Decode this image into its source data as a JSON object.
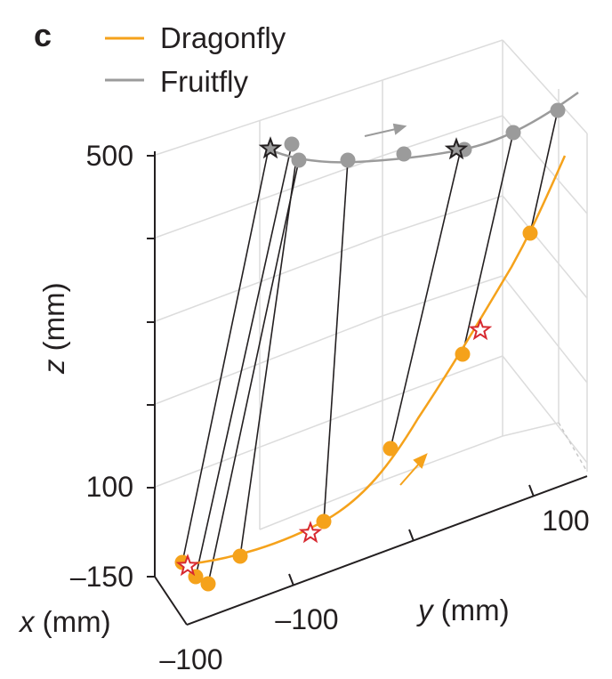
{
  "panel_label": "c",
  "colors": {
    "dragonfly": "#f5a21b",
    "fruitfly": "#9b9b9b",
    "star_outline": "#d7282f",
    "link": "#231f20",
    "grid": "#d9d9d9",
    "axis": "#231f20"
  },
  "chart_data": {
    "type": "line",
    "projection": "3d",
    "legend": {
      "placement": "top-left",
      "entries": [
        "Dragonfly",
        "Fruitfly"
      ]
    },
    "axes": {
      "x": {
        "label_var": "x",
        "label_unit": "(mm)",
        "ticks": [
          "–150",
          "–100"
        ],
        "range": [
          -160,
          -90
        ]
      },
      "y": {
        "label_var": "y",
        "label_unit": "(mm)",
        "ticks": [
          "–100",
          "100"
        ],
        "range": [
          -140,
          120
        ]
      },
      "z": {
        "label_var": "z",
        "label_unit": "(mm)",
        "ticks": [
          "500",
          "100"
        ],
        "range": [
          100,
          500
        ]
      }
    },
    "grid": true,
    "series": [
      {
        "name": "Dragonfly",
        "points": [
          {
            "y": -130,
            "z": 100
          },
          {
            "y": -100,
            "z": 106
          },
          {
            "y": -60,
            "z": 127
          },
          {
            "y": -25,
            "z": 175
          },
          {
            "y": 10,
            "z": 255
          },
          {
            "y": 40,
            "z": 345
          },
          {
            "y": 75,
            "z": 450
          },
          {
            "y": 95,
            "z": 520
          }
        ]
      },
      {
        "name": "Fruitfly",
        "points": [
          {
            "y": -130,
            "z": 498
          },
          {
            "y": -80,
            "z": 495
          },
          {
            "y": -40,
            "z": 496
          },
          {
            "y": 0,
            "z": 503
          },
          {
            "y": 40,
            "z": 516
          },
          {
            "y": 80,
            "z": 537
          },
          {
            "y": 115,
            "z": 560
          }
        ]
      }
    ],
    "dragonfly_markers": [
      [
        205,
        632
      ],
      [
        220,
        648
      ],
      [
        234,
        656
      ],
      [
        270,
        625
      ],
      [
        364,
        586
      ],
      [
        439,
        504
      ],
      [
        520,
        398
      ],
      [
        596,
        262
      ]
    ],
    "fruitfly_markers": [
      [
        328,
        162
      ],
      [
        336,
        180
      ],
      [
        391,
        180
      ],
      [
        454,
        173
      ],
      [
        522,
        168
      ],
      [
        577,
        149
      ],
      [
        627,
        124
      ]
    ],
    "links": [
      [
        [
          205,
          632
        ],
        [
          302,
          167
        ]
      ],
      [
        [
          220,
          648
        ],
        [
          328,
          162
        ]
      ],
      [
        [
          234,
          656
        ],
        [
          336,
          180
        ]
      ],
      [
        [
          270,
          625
        ],
        [
          334,
          172
        ]
      ],
      [
        [
          364,
          586
        ],
        [
          391,
          180
        ]
      ],
      [
        [
          439,
          504
        ],
        [
          517,
          172
        ]
      ],
      [
        [
          520,
          398
        ],
        [
          577,
          149
        ]
      ],
      [
        [
          596,
          262
        ],
        [
          627,
          124
        ]
      ]
    ],
    "dragonfly_stars": [
      [
        211,
        636
      ],
      [
        349,
        599
      ],
      [
        540,
        371
      ]
    ],
    "fruitfly_stars": [
      [
        304,
        167
      ],
      [
        513,
        168
      ]
    ]
  }
}
